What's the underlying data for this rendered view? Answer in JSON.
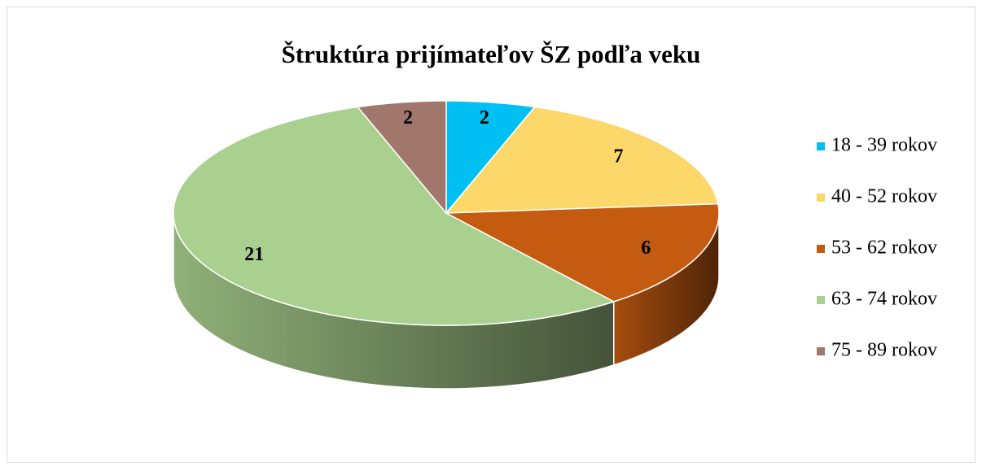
{
  "chart_data": {
    "type": "pie",
    "title": "Štruktúra prijímateľov ŠZ podľa veku",
    "categories": [
      "18 - 39 rokov",
      "40 - 52 rokov",
      "53 - 62 rokov",
      "63 - 74 rokov",
      "75 - 89 rokov"
    ],
    "values": [
      2,
      7,
      6,
      21,
      2
    ],
    "colors": [
      "#00bff3",
      "#fcd86a",
      "#c55a11",
      "#a9d08e",
      "#a0776a"
    ],
    "legend": "right"
  }
}
